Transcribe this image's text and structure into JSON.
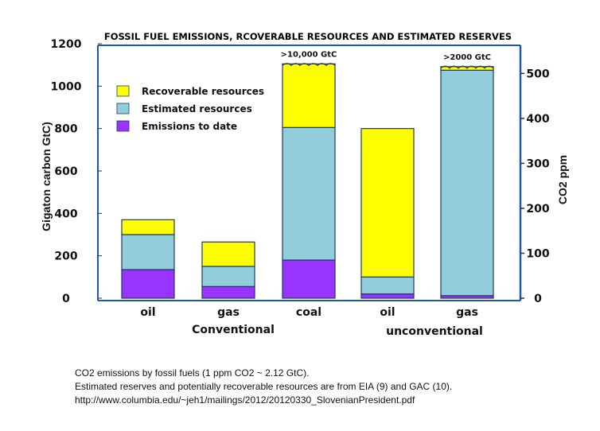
{
  "chart_data": {
    "type": "bar",
    "stacked": true,
    "title": "FOSSIL FUEL EMISSIONS, RCOVERABLE RESOURCES AND ESTIMATED  RESERVES",
    "ylabel": "Gigaton carbon GtC)",
    "y2label": "CO2 ppm",
    "ylim": [
      0,
      1200
    ],
    "yticks": [
      "0",
      "200",
      "400",
      "600",
      "800",
      "1000",
      "1200"
    ],
    "y2ticks": [
      "0",
      "100",
      "200",
      "300",
      "400",
      "500"
    ],
    "y2_ppm_per_gtc": 0.4717,
    "categories": [
      "oil",
      "gas",
      "coal",
      "oil",
      "gas"
    ],
    "groups": [
      {
        "label": "Conventional",
        "categories": [
          0,
          1,
          2
        ]
      },
      {
        "label": "unconventional",
        "categories": [
          3,
          4
        ]
      }
    ],
    "series": [
      {
        "name": "Emissions to date",
        "color": "#9933ff",
        "values": [
          135,
          55,
          180,
          20,
          12
        ]
      },
      {
        "name": "Estimated resources",
        "color": "#92cddc",
        "values": [
          165,
          95,
          625,
          80,
          1063
        ]
      },
      {
        "name": "Recoverable resources",
        "color": "#ffff00",
        "values": [
          70,
          115,
          300,
          700,
          17
        ]
      }
    ],
    "legend_order": [
      "Recoverable resources",
      "Estimated resources",
      "Emissions to date"
    ],
    "legend_position": "top-left",
    "annotations": [
      {
        "category": 2,
        "text": ">10,000 GtC"
      },
      {
        "category": 4,
        "text": ">2000 GtC"
      }
    ],
    "grid": false,
    "frame_color": "#1f5aa6",
    "bar_edge_color": "#1f3864"
  },
  "footnotes": [
    "CO2 emissions by fossil fuels (1 ppm CO2 ~ 2.12 GtC).",
    "Estimated reserves and potentially recoverable resources are from EIA (9) and GAC (10).",
    "http://www.columbia.edu/~jeh1/mailings/2012/20120330_SlovenianPresident.pdf"
  ]
}
